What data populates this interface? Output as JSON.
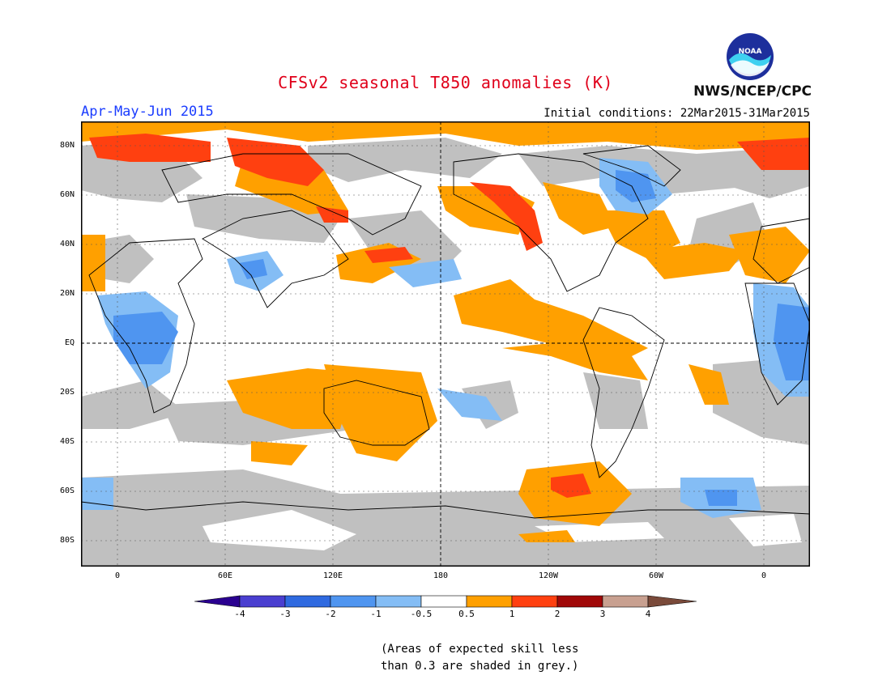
{
  "header": {
    "title": "CFSv2 seasonal T850 anomalies (K)",
    "period": "Apr-May-Jun 2015",
    "initial_conditions": "Initial conditions: 22Mar2015-31Mar2015",
    "agency": "NWS/NCEP/CPC",
    "logo_text": "NOAA"
  },
  "map": {
    "lat_labels": [
      "80N",
      "60N",
      "40N",
      "20N",
      "EQ",
      "20S",
      "40S",
      "60S",
      "80S"
    ],
    "lon_labels": [
      "0",
      "60E",
      "120E",
      "180",
      "120W",
      "60W",
      "0"
    ]
  },
  "colorbar": {
    "labels": [
      "-4",
      "-3",
      "-2",
      "-1",
      "-0.5",
      "0.5",
      "1",
      "2",
      "3",
      "4"
    ],
    "colors": [
      "#2a0090",
      "#4a3fd0",
      "#2f6ae0",
      "#4f95f0",
      "#84bdf5",
      "#ffffff",
      "#ffa000",
      "#ff4010",
      "#a00808",
      "#c8a090",
      "#7a4a3a"
    ]
  },
  "note": {
    "line1": "(Areas of expected skill less",
    "line2": "than 0.3 are shaded in grey.)"
  }
}
